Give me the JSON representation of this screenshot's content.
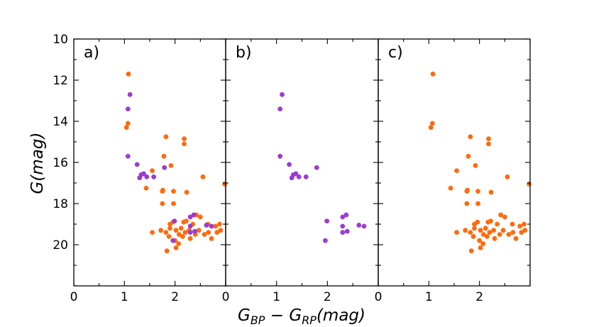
{
  "chart_data": {
    "type": "scatter",
    "xlabel": {
      "main_left": "G",
      "sub_left": "BP",
      "minus": " − ",
      "main_right": "G",
      "sub_right": "RP",
      "unit": "(mag)"
    },
    "ylabel": "G(mag)",
    "xlim": [
      0,
      3
    ],
    "ylim": [
      22,
      10
    ],
    "y_inverted": true,
    "xticks": [
      0,
      1,
      2
    ],
    "yticks": [
      10,
      12,
      14,
      16,
      18,
      20
    ],
    "tick_direction": "in",
    "grid": false,
    "colors": {
      "orange": "#ff6a0d",
      "purple": "#9b3ccf"
    },
    "panels": [
      {
        "label": "a)",
        "series": [
          "orange",
          "purple"
        ],
        "show_y_ticklabels": true
      },
      {
        "label": "b)",
        "series": [
          "purple"
        ],
        "show_y_ticklabels": false
      },
      {
        "label": "c)",
        "series": [
          "orange"
        ],
        "show_y_ticklabels": false
      }
    ],
    "series": [
      {
        "color_key": "orange",
        "points": [
          [
            1.08,
            11.7
          ],
          [
            1.07,
            14.1
          ],
          [
            1.04,
            14.3
          ],
          [
            1.82,
            14.75
          ],
          [
            2.18,
            14.85
          ],
          [
            2.18,
            15.1
          ],
          [
            1.78,
            15.7
          ],
          [
            1.55,
            16.4
          ],
          [
            1.92,
            16.15
          ],
          [
            2.55,
            16.7
          ],
          [
            1.43,
            17.25
          ],
          [
            1.75,
            17.4
          ],
          [
            1.76,
            17.35
          ],
          [
            1.97,
            17.4
          ],
          [
            2.23,
            17.45
          ],
          [
            2.98,
            17.05
          ],
          [
            1.75,
            18.0
          ],
          [
            1.97,
            18.0
          ],
          [
            1.9,
            19.0
          ],
          [
            1.96,
            18.9
          ],
          [
            2.17,
            18.9
          ],
          [
            2.22,
            18.85
          ],
          [
            2.35,
            19.0
          ],
          [
            2.42,
            18.55
          ],
          [
            2.5,
            18.65
          ],
          [
            2.65,
            19.0
          ],
          [
            2.8,
            19.1
          ],
          [
            2.88,
            19.0
          ],
          [
            1.55,
            19.4
          ],
          [
            1.72,
            19.3
          ],
          [
            1.82,
            19.4
          ],
          [
            1.9,
            19.2
          ],
          [
            2.02,
            19.3
          ],
          [
            2.08,
            19.5
          ],
          [
            2.12,
            19.2
          ],
          [
            2.15,
            19.6
          ],
          [
            2.2,
            19.4
          ],
          [
            2.28,
            19.3
          ],
          [
            2.3,
            19.7
          ],
          [
            2.4,
            19.5
          ],
          [
            2.47,
            19.3
          ],
          [
            2.58,
            19.5
          ],
          [
            2.66,
            19.4
          ],
          [
            2.72,
            19.7
          ],
          [
            2.83,
            19.4
          ],
          [
            2.9,
            19.3
          ],
          [
            1.88,
            19.6
          ],
          [
            2.0,
            19.8
          ],
          [
            2.02,
            20.15
          ],
          [
            1.84,
            20.3
          ],
          [
            2.07,
            19.95
          ]
        ]
      },
      {
        "color_key": "purple",
        "points": [
          [
            1.11,
            12.7
          ],
          [
            1.07,
            13.4
          ],
          [
            1.07,
            15.7
          ],
          [
            1.25,
            16.1
          ],
          [
            1.33,
            16.6
          ],
          [
            1.38,
            16.55
          ],
          [
            1.44,
            16.7
          ],
          [
            1.3,
            16.75
          ],
          [
            1.58,
            16.7
          ],
          [
            1.79,
            16.25
          ],
          [
            1.96,
            19.8
          ],
          [
            1.99,
            18.85
          ],
          [
            2.3,
            18.65
          ],
          [
            2.37,
            18.55
          ],
          [
            2.3,
            19.1
          ],
          [
            2.3,
            19.4
          ],
          [
            2.39,
            19.35
          ],
          [
            2.62,
            19.05
          ],
          [
            2.72,
            19.1
          ]
        ]
      }
    ]
  }
}
